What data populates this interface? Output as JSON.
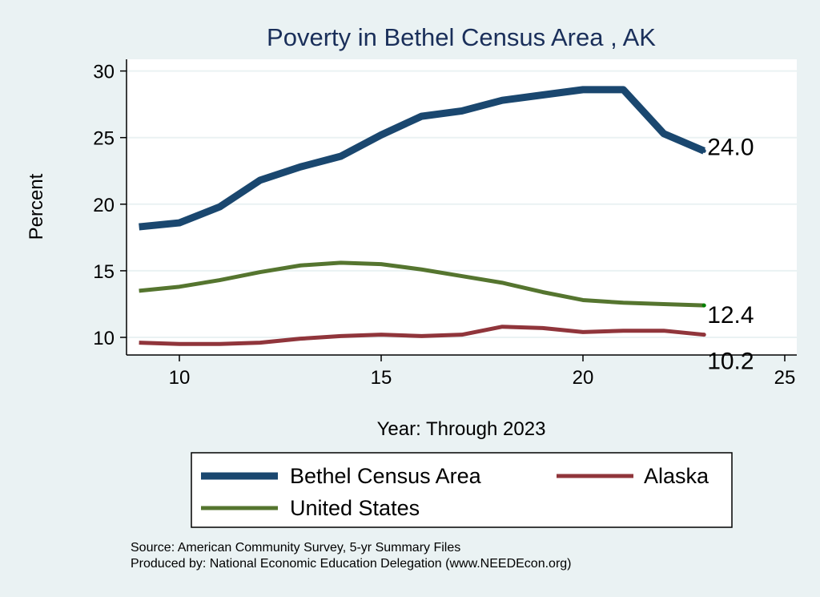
{
  "chart_data": {
    "type": "line",
    "title": "Poverty in Bethel Census Area , AK",
    "xlabel": "Year: Through 2023",
    "ylabel": "Percent",
    "xlim": [
      8.7,
      25.3
    ],
    "ylim": [
      8.7,
      31
    ],
    "xticks": [
      10,
      15,
      20,
      25
    ],
    "yticks": [
      10,
      15,
      20,
      25,
      30
    ],
    "grid": true,
    "legend_placement": "bottom",
    "x": [
      9,
      10,
      11,
      12,
      13,
      14,
      15,
      16,
      17,
      18,
      19,
      20,
      21,
      22,
      23
    ],
    "series": [
      {
        "name": "Bethel Census Area",
        "color": "#1a476f",
        "width": 9,
        "end_label": "24.0",
        "values": [
          18.3,
          18.6,
          19.8,
          21.8,
          22.8,
          23.6,
          25.2,
          26.6,
          27.0,
          27.8,
          28.2,
          28.6,
          28.6,
          25.3,
          24.0
        ]
      },
      {
        "name": "Alaska",
        "color": "#90353b",
        "width": 5,
        "end_label": "10.2",
        "values": [
          9.6,
          9.5,
          9.5,
          9.6,
          9.9,
          10.1,
          10.2,
          10.1,
          10.2,
          10.8,
          10.7,
          10.4,
          10.5,
          10.5,
          10.2
        ]
      },
      {
        "name": "United States",
        "color": "#55752f",
        "width": 5,
        "end_label": "12.4",
        "values": [
          13.5,
          13.8,
          14.3,
          14.9,
          15.4,
          15.6,
          15.5,
          15.1,
          14.6,
          14.1,
          13.4,
          12.8,
          12.6,
          12.5,
          12.4
        ]
      }
    ]
  },
  "footer": {
    "source": "Source: American Community Survey, 5-yr Summary Files",
    "produced": "Produced by: National Economic Education Delegation (www.NEEDEcon.org)"
  }
}
